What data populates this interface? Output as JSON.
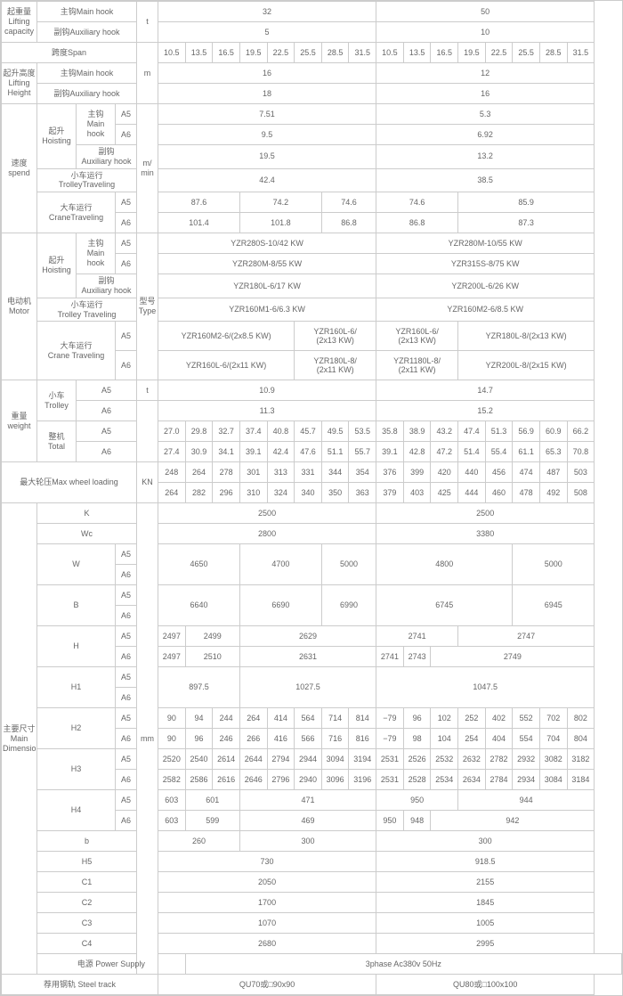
{
  "labels": {
    "lifting_capacity": "起重量\nLifting capacity",
    "main_hook": "主钩Main hook",
    "aux_hook": "副钩Auxiliary hook",
    "span": "跨度Span",
    "lifting_height": "起升高度\nLifting Height",
    "speed": "速度\nspend",
    "hoisting": "起升\nHoisting",
    "main_hook2": "主钩\nMain hook",
    "aux_hook2": "副钩\nAuxiliary hook",
    "trolley": "小车运行\nTrolleyTraveling",
    "crane": "大车运行\nCraneTraveling",
    "motor": "电动机\nMotor",
    "trolley2": "小车运行\nTrolley Traveling",
    "crane2": "大车运行\nCrane Traveling",
    "type": "型号\nType",
    "weight": "重量\nweight",
    "trolley_small": "小车\nTrolley",
    "total": "整机\nTotal",
    "wheel": "最大轮压Max wheel loading",
    "dimension": "主要尺寸\nMain Dimension",
    "power": "电源 Power Supply",
    "track": "荐用钢轨 Steel track",
    "K": "K",
    "Wc": "Wc",
    "W": "W",
    "Bdim": "B",
    "Hdim": "H",
    "H1": "H1",
    "H2": "H2",
    "H3": "H3",
    "H4": "H4",
    "bdim": "b",
    "H5": "H5",
    "C1": "C1",
    "C2": "C2",
    "C3": "C3",
    "C4": "C4"
  },
  "units": {
    "t": "t",
    "m": "m",
    "mmin": "m/\nmin",
    "kn": "KN",
    "mm": "mm"
  },
  "a5": "A5",
  "a6": "A6",
  "cap": {
    "main": [
      "32",
      "50"
    ],
    "aux": [
      "5",
      "10"
    ]
  },
  "span": [
    "10.5",
    "13.5",
    "16.5",
    "19.5",
    "22.5",
    "25.5",
    "28.5",
    "31.5",
    "10.5",
    "13.5",
    "16.5",
    "19.5",
    "22.5",
    "25.5",
    "28.5",
    "31.5"
  ],
  "height": {
    "main": [
      "16",
      "12"
    ],
    "aux": [
      "18",
      "16"
    ]
  },
  "speed": {
    "hoist_main_a5": [
      "7.51",
      "5.3"
    ],
    "hoist_main_a6": [
      "9.5",
      "6.92"
    ],
    "hoist_aux": [
      "19.5",
      "13.2"
    ],
    "trolley": [
      "42.4",
      "38.5"
    ],
    "crane_a5": [
      "87.6",
      "74.2",
      "74.6",
      "74.6",
      "85.9"
    ],
    "crane_a6": [
      "101.4",
      "101.8",
      "86.8",
      "86.8",
      "87.3"
    ]
  },
  "motor": {
    "hoist_main_a5": [
      "YZR280S-10/42 KW",
      "YZR280M-10/55 KW"
    ],
    "hoist_main_a6": [
      "YZR280M-8/55 KW",
      "YZR315S-8/75 KW"
    ],
    "hoist_aux": [
      "YZR180L-6/17 KW",
      "YZR200L-6/26 KW"
    ],
    "trolley": [
      "YZR160M1-6/6.3 KW",
      "YZR160M2-6/8.5 KW"
    ],
    "crane_a5": [
      "YZR160M2-6/(2x8.5 KW)",
      "YZR160L-6/\n(2x13 KW)",
      "YZR160L-6/\n(2x13 KW)",
      "YZR180L-8/(2x13 KW)"
    ],
    "crane_a6": [
      "YZR160L-6/(2x11 KW)",
      "YZR180L-8/\n(2x11 KW)",
      "YZR1180L-8/\n(2x11 KW)",
      "YZR200L-8/(2x15 KW)"
    ]
  },
  "trolley_wt": {
    "a5": [
      "10.9",
      "14.7"
    ],
    "a6": [
      "11.3",
      "15.2"
    ]
  },
  "total_wt": {
    "a5": [
      "27.0",
      "29.8",
      "32.7",
      "37.4",
      "40.8",
      "45.7",
      "49.5",
      "53.5",
      "35.8",
      "38.9",
      "43.2",
      "47.4",
      "51.3",
      "56.9",
      "60.9",
      "66.2"
    ],
    "a6": [
      "27.4",
      "30.9",
      "34.1",
      "39.1",
      "42.4",
      "47.6",
      "51.1",
      "55.7",
      "39.1",
      "42.8",
      "47.2",
      "51.4",
      "55.4",
      "61.1",
      "65.3",
      "70.8"
    ]
  },
  "wheel": {
    "r1": [
      "248",
      "264",
      "278",
      "301",
      "313",
      "331",
      "344",
      "354",
      "376",
      "399",
      "420",
      "440",
      "456",
      "474",
      "487",
      "503"
    ],
    "r2": [
      "264",
      "282",
      "296",
      "310",
      "324",
      "340",
      "350",
      "363",
      "379",
      "403",
      "425",
      "444",
      "460",
      "478",
      "492",
      "508"
    ]
  },
  "dim": {
    "K": [
      "2500",
      "2500"
    ],
    "Wc": [
      "2800",
      "3380"
    ],
    "W": [
      "4650",
      "4700",
      "5000",
      "4800",
      "5000"
    ],
    "B": [
      "6640",
      "6690",
      "6990",
      "6745",
      "6945"
    ],
    "H_a5": [
      "2497",
      "2499",
      "2629",
      "2741",
      "2747"
    ],
    "H_a6": [
      "2497",
      "2510",
      "2631",
      "2741",
      "2743",
      "2749"
    ],
    "H1": [
      "897.5",
      "1027.5",
      "1047.5"
    ],
    "H2_a5": [
      "90",
      "94",
      "244",
      "264",
      "414",
      "564",
      "714",
      "814",
      "−79",
      "96",
      "102",
      "252",
      "402",
      "552",
      "702",
      "802"
    ],
    "H2_a6": [
      "90",
      "96",
      "246",
      "266",
      "416",
      "566",
      "716",
      "816",
      "−79",
      "98",
      "104",
      "254",
      "404",
      "554",
      "704",
      "804"
    ],
    "H3_a5": [
      "2520",
      "2540",
      "2614",
      "2644",
      "2794",
      "2944",
      "3094",
      "3194",
      "2531",
      "2526",
      "2532",
      "2632",
      "2782",
      "2932",
      "3082",
      "3182"
    ],
    "H3_a6": [
      "2582",
      "2586",
      "2616",
      "2646",
      "2796",
      "2940",
      "3096",
      "3196",
      "2531",
      "2528",
      "2534",
      "2634",
      "2784",
      "2934",
      "3084",
      "3184"
    ],
    "H4_a5": [
      "603",
      "601",
      "471",
      "950",
      "944"
    ],
    "H4_a6": [
      "603",
      "599",
      "469",
      "950",
      "948",
      "942"
    ],
    "b": [
      "260",
      "300",
      "300"
    ],
    "H5": [
      "730",
      "918.5"
    ],
    "C1": [
      "2050",
      "2155"
    ],
    "C2": [
      "1700",
      "1845"
    ],
    "C3": [
      "1070",
      "1005"
    ],
    "C4": [
      "2680",
      "2995"
    ]
  },
  "power": "3phase  Ac380v  50Hz",
  "track": [
    "QU70或□90x90",
    "QU80或□100x100"
  ],
  "style": {
    "border_color": "#cccccc",
    "text_color": "#666666",
    "font_size": 9
  }
}
